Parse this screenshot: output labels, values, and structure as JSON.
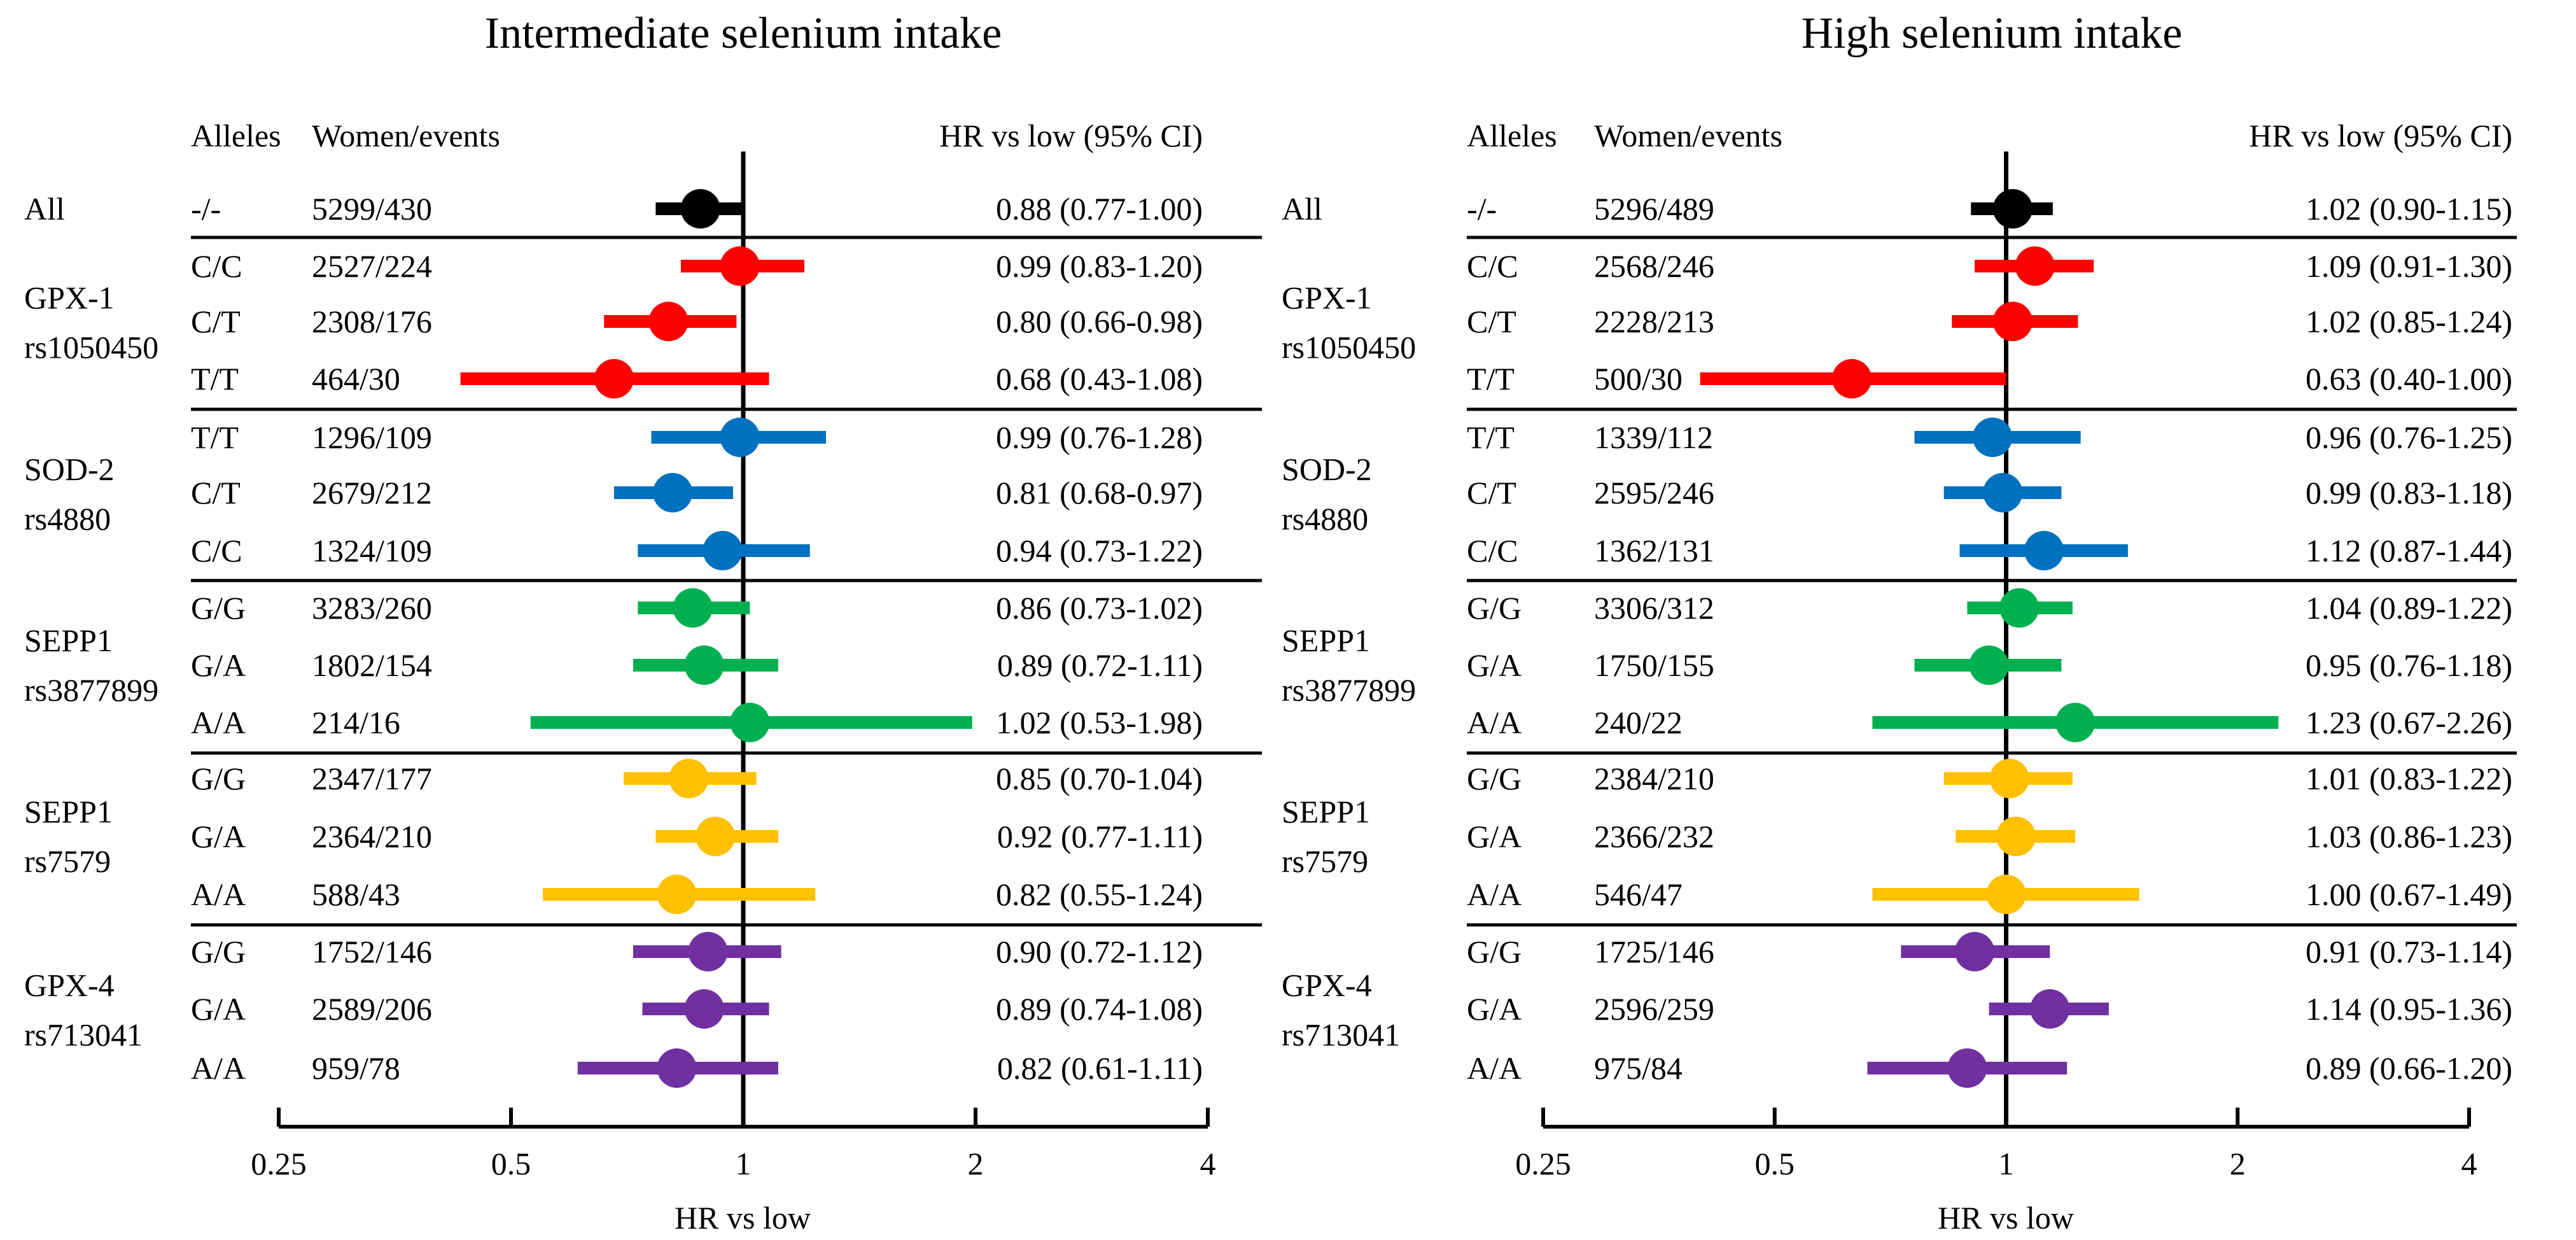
{
  "chart_data": [
    {
      "type": "forest",
      "title": "Intermediate selenium intake",
      "headers": {
        "alleles": "Alleles",
        "women": "Women/events",
        "hr": "HR vs low (95% CI)"
      },
      "xlabel": "HR vs low",
      "xscale": "log2",
      "xlim": [
        0.25,
        4
      ],
      "xticks": [
        "0.25",
        "0.5",
        "1",
        "2",
        "4"
      ],
      "reference_line": 1,
      "groups": [
        {
          "label": [
            "All"
          ],
          "color": "#000000",
          "rows": [
            {
              "allele": "-/-",
              "women_events": "5299/430",
              "hr_text": "0.88 (0.77-1.00)",
              "hr": 0.88,
              "lo": 0.77,
              "hi": 1.0
            }
          ]
        },
        {
          "label": [
            "GPX-1",
            "rs1050450"
          ],
          "color": "#ff0000",
          "rows": [
            {
              "allele": "C/C",
              "women_events": "2527/224",
              "hr_text": "0.99 (0.83-1.20)",
              "hr": 0.99,
              "lo": 0.83,
              "hi": 1.2
            },
            {
              "allele": "C/T",
              "women_events": "2308/176",
              "hr_text": "0.80 (0.66-0.98)",
              "hr": 0.8,
              "lo": 0.66,
              "hi": 0.98
            },
            {
              "allele": "T/T",
              "women_events": "464/30",
              "hr_text": "0.68 (0.43-1.08)",
              "hr": 0.68,
              "lo": 0.43,
              "hi": 1.08
            }
          ]
        },
        {
          "label": [
            "SOD-2",
            "rs4880"
          ],
          "color": "#0070c0",
          "rows": [
            {
              "allele": "T/T",
              "women_events": "1296/109",
              "hr_text": "0.99 (0.76-1.28)",
              "hr": 0.99,
              "lo": 0.76,
              "hi": 1.28
            },
            {
              "allele": "C/T",
              "women_events": "2679/212",
              "hr_text": "0.81 (0.68-0.97)",
              "hr": 0.81,
              "lo": 0.68,
              "hi": 0.97
            },
            {
              "allele": "C/C",
              "women_events": "1324/109",
              "hr_text": "0.94 (0.73-1.22)",
              "hr": 0.94,
              "lo": 0.73,
              "hi": 1.22
            }
          ]
        },
        {
          "label": [
            "SEPP1",
            "rs3877899"
          ],
          "color": "#00b050",
          "rows": [
            {
              "allele": "G/G",
              "women_events": "3283/260",
              "hr_text": "0.86 (0.73-1.02)",
              "hr": 0.86,
              "lo": 0.73,
              "hi": 1.02
            },
            {
              "allele": "G/A",
              "women_events": "1802/154",
              "hr_text": "0.89 (0.72-1.11)",
              "hr": 0.89,
              "lo": 0.72,
              "hi": 1.11
            },
            {
              "allele": "A/A",
              "women_events": "214/16",
              "hr_text": "1.02 (0.53-1.98)",
              "hr": 1.02,
              "lo": 0.53,
              "hi": 1.98
            }
          ]
        },
        {
          "label": [
            "SEPP1",
            "rs7579"
          ],
          "color": "#ffc000",
          "rows": [
            {
              "allele": "G/G",
              "women_events": "2347/177",
              "hr_text": "0.85 (0.70-1.04)",
              "hr": 0.85,
              "lo": 0.7,
              "hi": 1.04
            },
            {
              "allele": "G/A",
              "women_events": "2364/210",
              "hr_text": "0.92 (0.77-1.11)",
              "hr": 0.92,
              "lo": 0.77,
              "hi": 1.11
            },
            {
              "allele": "A/A",
              "women_events": "588/43",
              "hr_text": "0.82 (0.55-1.24)",
              "hr": 0.82,
              "lo": 0.55,
              "hi": 1.24
            }
          ]
        },
        {
          "label": [
            "GPX-4",
            "rs713041"
          ],
          "color": "#7030a0",
          "rows": [
            {
              "allele": "G/G",
              "women_events": "1752/146",
              "hr_text": "0.90 (0.72-1.12)",
              "hr": 0.9,
              "lo": 0.72,
              "hi": 1.12
            },
            {
              "allele": "G/A",
              "women_events": "2589/206",
              "hr_text": "0.89 (0.74-1.08)",
              "hr": 0.89,
              "lo": 0.74,
              "hi": 1.08
            },
            {
              "allele": "A/A",
              "women_events": "959/78",
              "hr_text": "0.82 (0.61-1.11)",
              "hr": 0.82,
              "lo": 0.61,
              "hi": 1.11
            }
          ]
        }
      ]
    },
    {
      "type": "forest",
      "title": "High selenium intake",
      "headers": {
        "alleles": "Alleles",
        "women": "Women/events",
        "hr": "HR vs low (95% CI)"
      },
      "xlabel": "HR vs low",
      "xscale": "log2",
      "xlim": [
        0.25,
        4
      ],
      "xticks": [
        "0.25",
        "0.5",
        "1",
        "2",
        "4"
      ],
      "reference_line": 1,
      "groups": [
        {
          "label": [
            "All"
          ],
          "color": "#000000",
          "rows": [
            {
              "allele": "-/-",
              "women_events": "5296/489",
              "hr_text": "1.02 (0.90-1.15)",
              "hr": 1.02,
              "lo": 0.9,
              "hi": 1.15
            }
          ]
        },
        {
          "label": [
            "GPX-1",
            "rs1050450"
          ],
          "color": "#ff0000",
          "rows": [
            {
              "allele": "C/C",
              "women_events": "2568/246",
              "hr_text": "1.09 (0.91-1.30)",
              "hr": 1.09,
              "lo": 0.91,
              "hi": 1.3
            },
            {
              "allele": "C/T",
              "women_events": "2228/213",
              "hr_text": "1.02 (0.85-1.24)",
              "hr": 1.02,
              "lo": 0.85,
              "hi": 1.24
            },
            {
              "allele": "T/T",
              "women_events": "500/30",
              "hr_text": "0.63 (0.40-1.00)",
              "hr": 0.63,
              "lo": 0.4,
              "hi": 1.0
            }
          ]
        },
        {
          "label": [
            "SOD-2",
            "rs4880"
          ],
          "color": "#0070c0",
          "rows": [
            {
              "allele": "T/T",
              "women_events": "1339/112",
              "hr_text": "0.96 (0.76-1.25)",
              "hr": 0.96,
              "lo": 0.76,
              "hi": 1.25
            },
            {
              "allele": "C/T",
              "women_events": "2595/246",
              "hr_text": "0.99 (0.83-1.18)",
              "hr": 0.99,
              "lo": 0.83,
              "hi": 1.18
            },
            {
              "allele": "C/C",
              "women_events": "1362/131",
              "hr_text": "1.12 (0.87-1.44)",
              "hr": 1.12,
              "lo": 0.87,
              "hi": 1.44
            }
          ]
        },
        {
          "label": [
            "SEPP1",
            "rs3877899"
          ],
          "color": "#00b050",
          "rows": [
            {
              "allele": "G/G",
              "women_events": "3306/312",
              "hr_text": "1.04 (0.89-1.22)",
              "hr": 1.04,
              "lo": 0.89,
              "hi": 1.22
            },
            {
              "allele": "G/A",
              "women_events": "1750/155",
              "hr_text": "0.95 (0.76-1.18)",
              "hr": 0.95,
              "lo": 0.76,
              "hi": 1.18
            },
            {
              "allele": "A/A",
              "women_events": "240/22",
              "hr_text": "1.23 (0.67-2.26)",
              "hr": 1.23,
              "lo": 0.67,
              "hi": 2.26
            }
          ]
        },
        {
          "label": [
            "SEPP1",
            "rs7579"
          ],
          "color": "#ffc000",
          "rows": [
            {
              "allele": "G/G",
              "women_events": "2384/210",
              "hr_text": "1.01 (0.83-1.22)",
              "hr": 1.01,
              "lo": 0.83,
              "hi": 1.22
            },
            {
              "allele": "G/A",
              "women_events": "2366/232",
              "hr_text": "1.03 (0.86-1.23)",
              "hr": 1.03,
              "lo": 0.86,
              "hi": 1.23
            },
            {
              "allele": "A/A",
              "women_events": "546/47",
              "hr_text": "1.00 (0.67-1.49)",
              "hr": 1.0,
              "lo": 0.67,
              "hi": 1.49
            }
          ]
        },
        {
          "label": [
            "GPX-4",
            "rs713041"
          ],
          "color": "#7030a0",
          "rows": [
            {
              "allele": "G/G",
              "women_events": "1725/146",
              "hr_text": "0.91 (0.73-1.14)",
              "hr": 0.91,
              "lo": 0.73,
              "hi": 1.14
            },
            {
              "allele": "G/A",
              "women_events": "2596/259",
              "hr_text": "1.14 (0.95-1.36)",
              "hr": 1.14,
              "lo": 0.95,
              "hi": 1.36
            },
            {
              "allele": "A/A",
              "women_events": "975/84",
              "hr_text": "0.89 (0.66-1.20)",
              "hr": 0.89,
              "lo": 0.66,
              "hi": 1.2
            }
          ]
        }
      ]
    }
  ]
}
